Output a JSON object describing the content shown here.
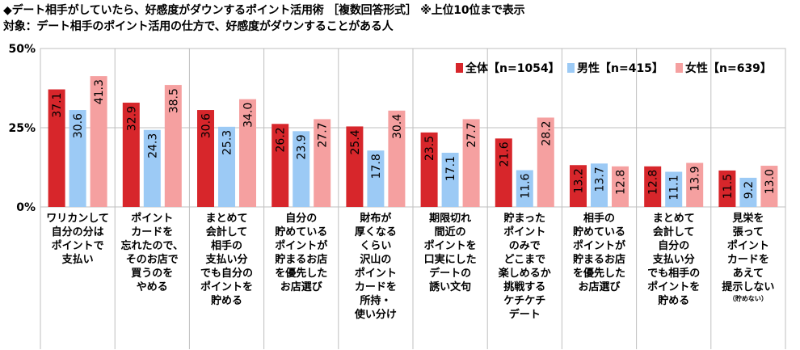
{
  "header": {
    "title": "◆デート相手がしていたら、好感度がダウンするポイント活用術 ［複数回答形式］ ※上位10位まで表示",
    "subtitle": "対象：デート相手のポイント活用の仕方で、好感度がダウンすることがある人"
  },
  "chart_data": {
    "type": "bar",
    "ylim": [
      0,
      50
    ],
    "yticks": [
      "0%",
      "25%",
      "50%"
    ],
    "ytick_values": [
      0,
      25,
      50
    ],
    "grid": true,
    "legend_position": "top-right",
    "categories": [
      [
        "ワリカンして",
        "自分の分は",
        "ポイントで",
        "支払い"
      ],
      [
        "ポイント",
        "カードを",
        "忘れたので、",
        "そのお店で",
        "買うのを",
        "やめる"
      ],
      [
        "まとめて",
        "会計して",
        "相手の",
        "支払い分",
        "でも自分の",
        "ポイントを",
        "貯める"
      ],
      [
        "自分の",
        "貯めている",
        "ポイントが",
        "貯まるお店",
        "を優先した",
        "お店選び"
      ],
      [
        "財布が",
        "厚くなる",
        "くらい",
        "沢山の",
        "ポイント",
        "カードを",
        "所持・",
        "使い分け"
      ],
      [
        "期限切れ",
        "間近の",
        "ポイントを",
        "口実にした",
        "デートの",
        "誘い文句"
      ],
      [
        "貯まった",
        "ポイント",
        "のみで",
        "どこまで",
        "楽しめるか",
        "挑戦する",
        "ケチケチ",
        "デート"
      ],
      [
        "相手の",
        "貯めている",
        "ポイントが",
        "貯まるお店",
        "を優先した",
        "お店選び"
      ],
      [
        "まとめて",
        "会計して",
        "自分の",
        "支払い分",
        "でも相手の",
        "ポイントを",
        "貯める"
      ],
      [
        "見栄を",
        "張って",
        "ポイント",
        "カードを",
        "あえて",
        "提示しない"
      ]
    ],
    "category_notes": [
      "",
      "",
      "",
      "",
      "",
      "",
      "",
      "",
      "",
      "（貯めない）"
    ],
    "series": [
      {
        "name": "全体【n=1054】",
        "color": "#d7262b",
        "values": [
          37.1,
          32.9,
          30.6,
          26.2,
          25.4,
          23.5,
          21.6,
          13.2,
          12.8,
          11.5
        ],
        "labels": [
          "37.1",
          "32.9",
          "30.6",
          "26.2",
          "25.4",
          "23.5",
          "21.6",
          "13.2",
          "12.8",
          "11.5"
        ]
      },
      {
        "name": "男性【n=415】",
        "color": "#9ccaf5",
        "values": [
          30.6,
          24.3,
          25.3,
          23.9,
          17.8,
          17.1,
          11.6,
          13.7,
          11.1,
          9.2
        ],
        "labels": [
          "30.6",
          "24.3",
          "25.3",
          "23.9",
          "17.8",
          "17.1",
          "11.6",
          "13.7",
          "11.1",
          "9.2"
        ]
      },
      {
        "name": "女性【n=639】",
        "color": "#f5a0a0",
        "values": [
          41.3,
          38.5,
          34.0,
          27.7,
          30.4,
          27.7,
          28.2,
          12.8,
          13.9,
          13.0
        ],
        "labels": [
          "41.3",
          "38.5",
          "34.0",
          "27.7",
          "30.4",
          "27.7",
          "28.2",
          "12.8",
          "13.9",
          "13.0"
        ]
      }
    ]
  }
}
